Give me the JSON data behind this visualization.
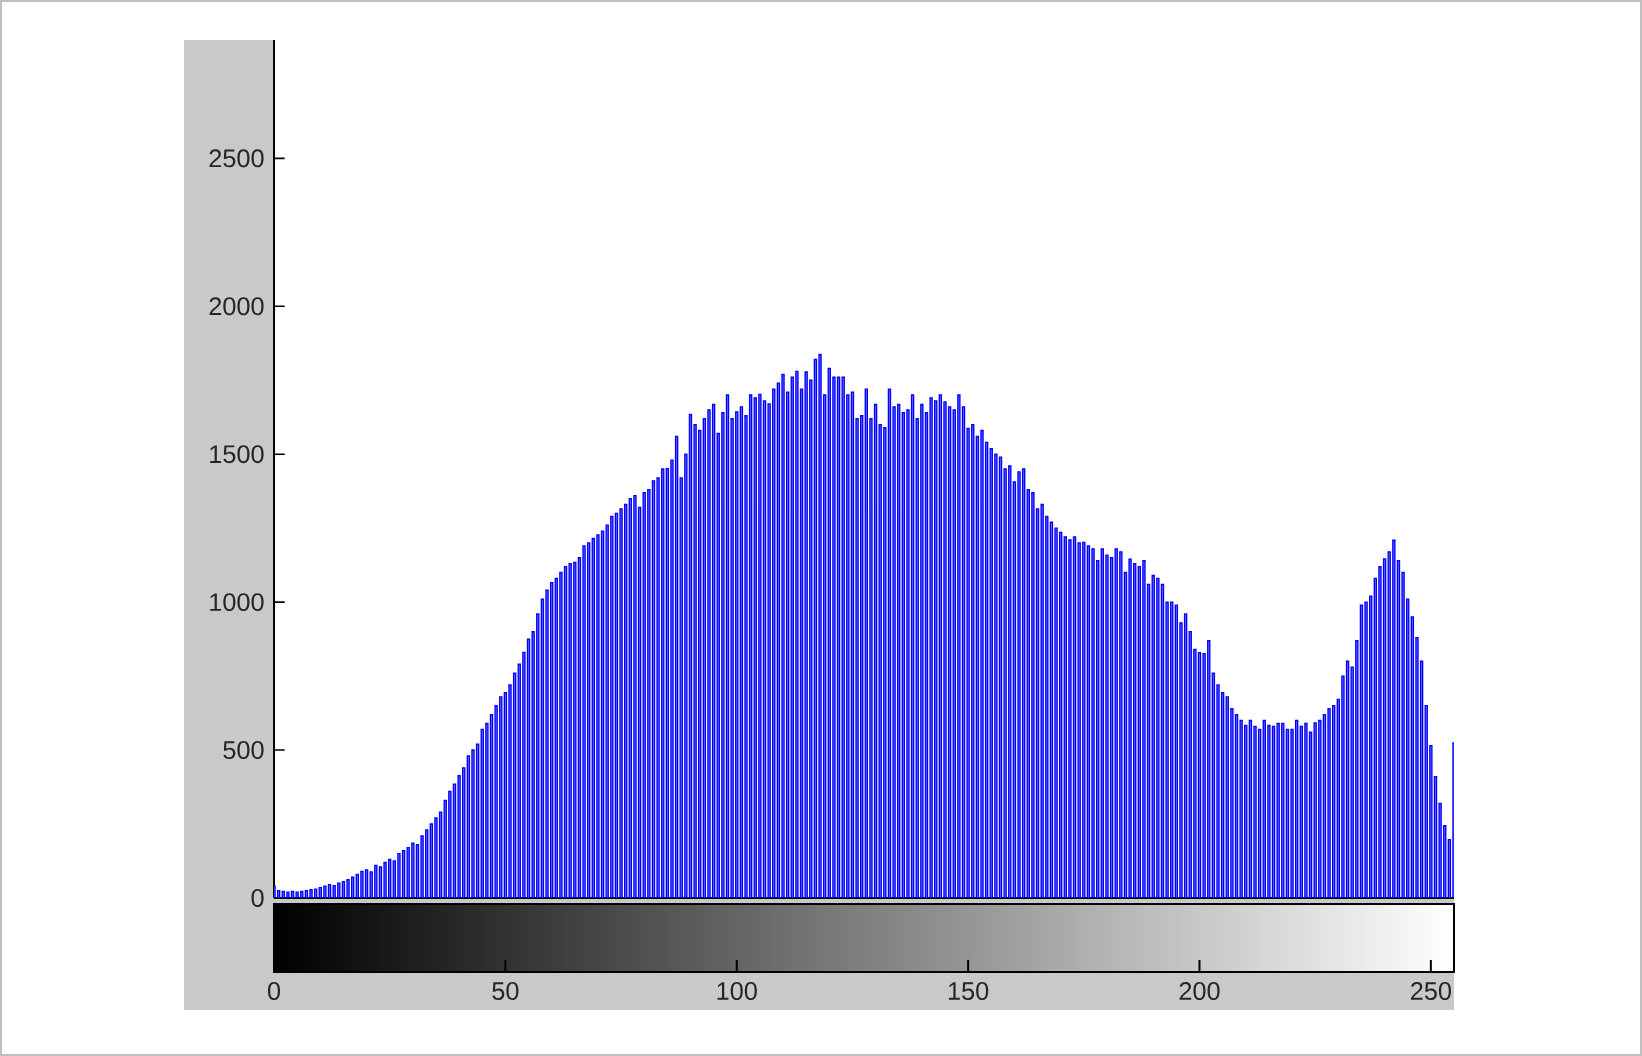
{
  "chart_data": {
    "type": "bar",
    "color": "#0000ff",
    "x": [
      0,
      1,
      2,
      3,
      4,
      5,
      6,
      7,
      8,
      9,
      10,
      11,
      12,
      13,
      14,
      15,
      16,
      17,
      18,
      19,
      20,
      21,
      22,
      23,
      24,
      25,
      26,
      27,
      28,
      29,
      30,
      31,
      32,
      33,
      34,
      35,
      36,
      37,
      38,
      39,
      40,
      41,
      42,
      43,
      44,
      45,
      46,
      47,
      48,
      49,
      50,
      51,
      52,
      53,
      54,
      55,
      56,
      57,
      58,
      59,
      60,
      61,
      62,
      63,
      64,
      65,
      66,
      67,
      68,
      69,
      70,
      71,
      72,
      73,
      74,
      75,
      76,
      77,
      78,
      79,
      80,
      81,
      82,
      83,
      84,
      85,
      86,
      87,
      88,
      89,
      90,
      91,
      92,
      93,
      94,
      95,
      96,
      97,
      98,
      99,
      100,
      101,
      102,
      103,
      104,
      105,
      106,
      107,
      108,
      109,
      110,
      111,
      112,
      113,
      114,
      115,
      116,
      117,
      118,
      119,
      120,
      121,
      122,
      123,
      124,
      125,
      126,
      127,
      128,
      129,
      130,
      131,
      132,
      133,
      134,
      135,
      136,
      137,
      138,
      139,
      140,
      141,
      142,
      143,
      144,
      145,
      146,
      147,
      148,
      149,
      150,
      151,
      152,
      153,
      154,
      155,
      156,
      157,
      158,
      159,
      160,
      161,
      162,
      163,
      164,
      165,
      166,
      167,
      168,
      169,
      170,
      171,
      172,
      173,
      174,
      175,
      176,
      177,
      178,
      179,
      180,
      181,
      182,
      183,
      184,
      185,
      186,
      187,
      188,
      189,
      190,
      191,
      192,
      193,
      194,
      195,
      196,
      197,
      198,
      199,
      200,
      201,
      202,
      203,
      204,
      205,
      206,
      207,
      208,
      209,
      210,
      211,
      212,
      213,
      214,
      215,
      216,
      217,
      218,
      219,
      220,
      221,
      222,
      223,
      224,
      225,
      226,
      227,
      228,
      229,
      230,
      231,
      232,
      233,
      234,
      235,
      236,
      237,
      238,
      239,
      240,
      241,
      242,
      243,
      244,
      245,
      246,
      247,
      248,
      249,
      250,
      251,
      252,
      253,
      254,
      255
    ],
    "values": [
      40,
      25,
      22,
      20,
      22,
      20,
      22,
      25,
      28,
      30,
      35,
      40,
      45,
      42,
      50,
      55,
      62,
      70,
      80,
      90,
      95,
      88,
      110,
      105,
      120,
      130,
      125,
      150,
      160,
      170,
      185,
      180,
      210,
      230,
      250,
      271,
      290,
      330,
      360,
      385,
      413,
      440,
      480,
      500,
      520,
      570,
      590,
      620,
      650,
      680,
      694,
      720,
      760,
      790,
      830,
      875,
      900,
      960,
      1010,
      1040,
      1066,
      1080,
      1100,
      1120,
      1130,
      1134,
      1150,
      1190,
      1200,
      1215,
      1227,
      1240,
      1260,
      1290,
      1300,
      1315,
      1330,
      1350,
      1360,
      1320,
      1370,
      1380,
      1410,
      1420,
      1450,
      1451,
      1480,
      1560,
      1420,
      1500,
      1634,
      1600,
      1580,
      1620,
      1650,
      1668,
      1570,
      1640,
      1700,
      1620,
      1643,
      1660,
      1630,
      1700,
      1690,
      1702,
      1680,
      1670,
      1720,
      1740,
      1770,
      1710,
      1760,
      1780,
      1720,
      1778,
      1750,
      1820,
      1837,
      1700,
      1790,
      1760,
      1760,
      1760,
      1700,
      1710,
      1620,
      1630,
      1720,
      1620,
      1668,
      1600,
      1590,
      1720,
      1660,
      1668,
      1640,
      1650,
      1700,
      1620,
      1668,
      1640,
      1690,
      1680,
      1700,
      1677,
      1660,
      1650,
      1700,
      1660,
      1587,
      1600,
      1560,
      1580,
      1540,
      1519,
      1500,
      1490,
      1450,
      1460,
      1406,
      1440,
      1450,
      1380,
      1370,
      1315,
      1330,
      1290,
      1270,
      1250,
      1236,
      1220,
      1210,
      1220,
      1200,
      1202,
      1190,
      1180,
      1140,
      1180,
      1159,
      1150,
      1180,
      1170,
      1100,
      1145,
      1130,
      1120,
      1140,
      1060,
      1090,
      1080,
      1060,
      1000,
      1000,
      990,
      930,
      960,
      900,
      840,
      829,
      826,
      870,
      760,
      720,
      694,
      680,
      640,
      620,
      600,
      583,
      600,
      580,
      570,
      600,
      583,
      580,
      590,
      590,
      570,
      570,
      600,
      580,
      590,
      560,
      592,
      600,
      620,
      640,
      650,
      671,
      750,
      800,
      780,
      870,
      990,
      1000,
      1020,
      1080,
      1120,
      1146,
      1170,
      1209,
      1140,
      1100,
      1010,
      950,
      880,
      800,
      650,
      515,
      410,
      320,
      244,
      197,
      524
    ],
    "xlim": [
      0,
      255
    ],
    "ylim": [
      0,
      2900
    ],
    "xticks": [
      0,
      50,
      100,
      150,
      200,
      250
    ],
    "yticks": [
      0,
      500,
      1000,
      1500,
      2000,
      2500
    ],
    "grid": false
  }
}
